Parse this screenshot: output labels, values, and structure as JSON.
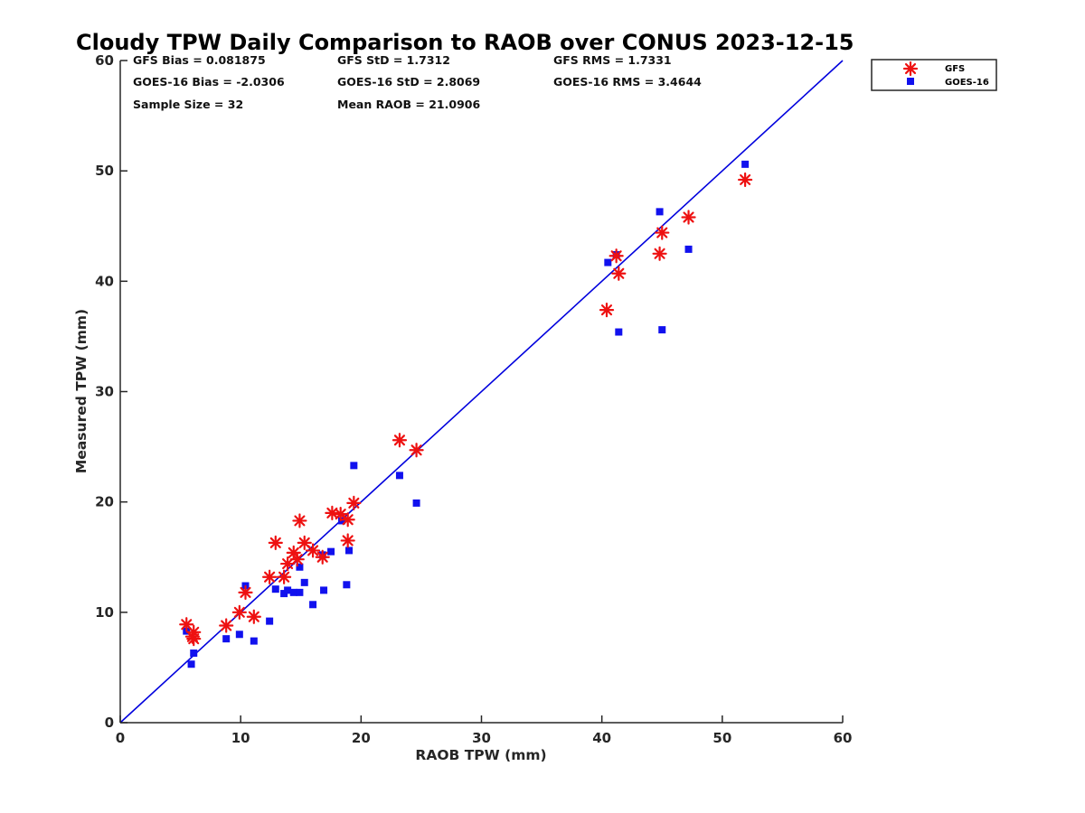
{
  "chart_data": {
    "type": "scatter",
    "title": "Cloudy TPW Daily Comparison to RAOB over CONUS 2023-12-15",
    "xlabel": "RAOB TPW (mm)",
    "ylabel": "Measured TPW (mm)",
    "xlim": [
      0,
      60
    ],
    "ylim": [
      0,
      60
    ],
    "xticks": [
      "0",
      "10",
      "20",
      "30",
      "40",
      "50",
      "60"
    ],
    "yticks": [
      "0",
      "10",
      "20",
      "30",
      "40",
      "50",
      "60"
    ],
    "grid": false,
    "legend_position": "outside-top-right",
    "reference_line": {
      "from": [
        0,
        0
      ],
      "to": [
        60,
        60
      ],
      "color": "#0000dd"
    },
    "stats": {
      "gfs_bias": "GFS Bias = 0.081875",
      "gfs_std": "GFS StD = 1.7312",
      "gfs_rms": "GFS RMS = 1.7331",
      "goes_bias": "GOES-16 Bias = -2.0306",
      "goes_std": "GOES-16 StD = 2.8069",
      "goes_rms": "GOES-16 RMS = 3.4644",
      "sample_size": "Sample Size = 32",
      "mean_raob": "Mean RAOB = 21.0906"
    },
    "series": [
      {
        "name": "GFS",
        "marker": "asterisk",
        "color": "#ee1111",
        "points": [
          [
            5.5,
            8.9
          ],
          [
            6.0,
            7.8
          ],
          [
            6.1,
            8.2
          ],
          [
            6.1,
            7.6
          ],
          [
            8.8,
            8.8
          ],
          [
            9.9,
            10.0
          ],
          [
            10.4,
            11.8
          ],
          [
            11.1,
            9.6
          ],
          [
            12.4,
            13.2
          ],
          [
            12.9,
            16.3
          ],
          [
            13.6,
            13.2
          ],
          [
            13.9,
            14.4
          ],
          [
            14.4,
            15.4
          ],
          [
            14.7,
            14.8
          ],
          [
            14.9,
            18.3
          ],
          [
            15.3,
            16.3
          ],
          [
            16.0,
            15.6
          ],
          [
            16.8,
            15.0
          ],
          [
            17.6,
            19.0
          ],
          [
            18.3,
            18.9
          ],
          [
            18.9,
            18.4
          ],
          [
            18.9,
            16.5
          ],
          [
            19.4,
            19.9
          ],
          [
            23.2,
            25.6
          ],
          [
            24.6,
            24.7
          ],
          [
            40.4,
            37.4
          ],
          [
            41.2,
            42.3
          ],
          [
            41.4,
            40.7
          ],
          [
            44.8,
            42.5
          ],
          [
            45.0,
            44.4
          ],
          [
            47.2,
            45.8
          ],
          [
            51.9,
            49.2
          ]
        ]
      },
      {
        "name": "GOES-16",
        "marker": "square",
        "color": "#1111ee",
        "points": [
          [
            5.5,
            8.3
          ],
          [
            5.9,
            5.3
          ],
          [
            6.1,
            6.3
          ],
          [
            8.8,
            7.6
          ],
          [
            9.9,
            8.0
          ],
          [
            10.4,
            12.4
          ],
          [
            11.1,
            7.4
          ],
          [
            12.4,
            9.2
          ],
          [
            12.9,
            12.1
          ],
          [
            13.6,
            11.7
          ],
          [
            13.9,
            12.0
          ],
          [
            14.4,
            11.8
          ],
          [
            14.9,
            11.8
          ],
          [
            14.9,
            14.1
          ],
          [
            15.3,
            12.7
          ],
          [
            16.0,
            10.7
          ],
          [
            16.8,
            15.2
          ],
          [
            16.9,
            12.0
          ],
          [
            17.5,
            15.5
          ],
          [
            18.4,
            18.3
          ],
          [
            18.8,
            12.5
          ],
          [
            19.0,
            15.6
          ],
          [
            19.4,
            23.3
          ],
          [
            23.2,
            22.4
          ],
          [
            24.6,
            19.9
          ],
          [
            40.5,
            41.7
          ],
          [
            41.2,
            42.4
          ],
          [
            41.4,
            35.4
          ],
          [
            44.8,
            46.3
          ],
          [
            45.0,
            35.6
          ],
          [
            47.2,
            42.9
          ],
          [
            51.9,
            50.6
          ]
        ]
      }
    ]
  }
}
